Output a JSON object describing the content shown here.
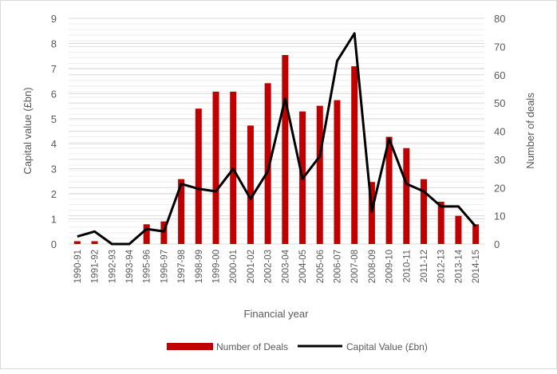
{
  "chart_data": {
    "type": "bar+line",
    "title": "",
    "xlabel": "Financial year",
    "ylabel_left": "Capital value (£bn)",
    "ylabel_right": "Number of deals",
    "ylim_left": [
      0,
      9
    ],
    "ylim_right": [
      0,
      80
    ],
    "yticks_left": [
      "0",
      "1",
      "2",
      "3",
      "4",
      "5",
      "6",
      "7",
      "8",
      "9"
    ],
    "yticks_right": [
      "0",
      "10",
      "20",
      "30",
      "40",
      "50",
      "60",
      "70",
      "80"
    ],
    "grid": true,
    "legend_position": "bottom",
    "categories": [
      "1990-91",
      "1991-92",
      "1992-93",
      "1993-94",
      "1995-96",
      "1996-97",
      "1997-98",
      "1998-99",
      "1999-00",
      "2000-01",
      "2001-02",
      "2002-03",
      "2003-04",
      "2004-05",
      "2005-06",
      "2006-07",
      "2007-08",
      "2008-09",
      "2009-10",
      "2010-11",
      "2011-12",
      "2012-13",
      "2013-14",
      "2014-15"
    ],
    "series": [
      {
        "name": "Number of Deals",
        "type": "bar",
        "axis": "right",
        "color": "#C00000",
        "values": [
          1,
          1,
          0,
          0,
          7,
          8,
          23,
          48,
          54,
          54,
          42,
          57,
          67,
          47,
          49,
          51,
          63,
          22,
          38,
          34,
          23,
          15,
          10,
          7
        ]
      },
      {
        "name": "Capital Value (£bn)",
        "type": "line",
        "axis": "left",
        "color": "#000000",
        "values": [
          0.3,
          0.5,
          0,
          0,
          0.6,
          0.5,
          2.4,
          2.2,
          2.1,
          3.0,
          1.8,
          2.9,
          5.8,
          2.6,
          3.5,
          7.3,
          8.4,
          1.3,
          4.2,
          2.4,
          2.1,
          1.5,
          1.5,
          0.7
        ]
      }
    ]
  }
}
